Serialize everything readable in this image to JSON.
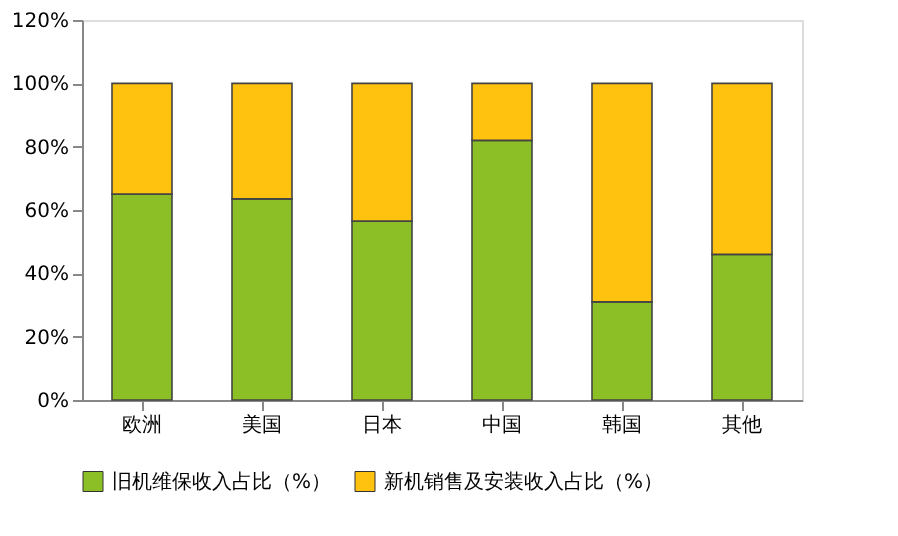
{
  "chart_data": {
    "type": "bar",
    "stacked": true,
    "categories": [
      "欧洲",
      "美国",
      "日本",
      "中国",
      "韩国",
      "其他"
    ],
    "series": [
      {
        "name": "旧机维保收入占比（%）",
        "color": "#8cbf26",
        "values": [
          65,
          63.5,
          56.5,
          82,
          31,
          46
        ]
      },
      {
        "name": "新机销售及安装收入占比（%）",
        "color": "#ffc20e",
        "values": [
          35,
          36.5,
          43.5,
          18,
          69,
          54
        ]
      }
    ],
    "ylim": [
      0,
      120
    ],
    "yticks": [
      {
        "value": 0,
        "label": "0%"
      },
      {
        "value": 20,
        "label": "20%"
      },
      {
        "value": 40,
        "label": "40%"
      },
      {
        "value": 60,
        "label": "60%"
      },
      {
        "value": 80,
        "label": "80%"
      },
      {
        "value": 100,
        "label": "100%"
      },
      {
        "value": 120,
        "label": "120%"
      }
    ],
    "grid": false,
    "legend": "bottom"
  }
}
